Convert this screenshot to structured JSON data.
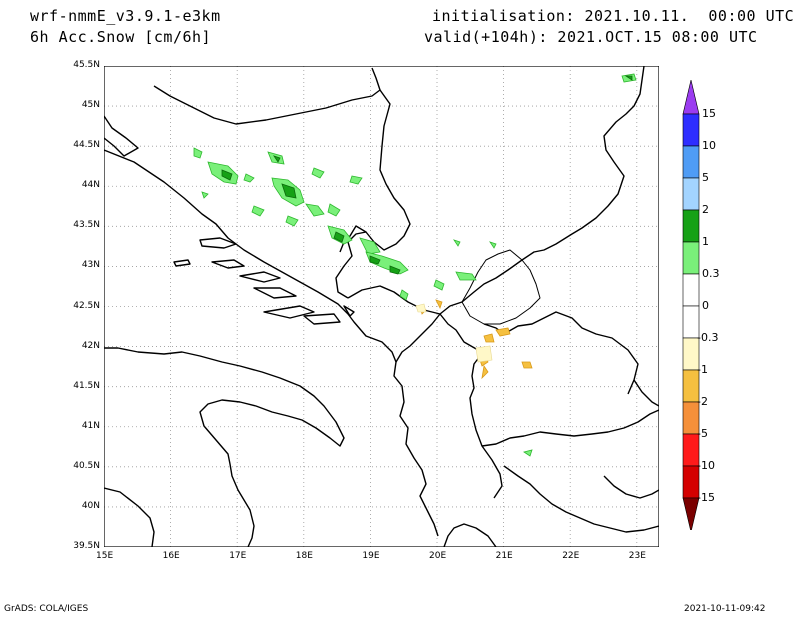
{
  "header": {
    "model": "wrf-nmmE_v3.9.1-e3km",
    "field": "6h Acc.Snow [cm/6h]",
    "init": "initialisation: 2021.10.11.  00:00 UTC",
    "valid": "valid(+104h): 2021.OCT.15 08:00 UTC"
  },
  "footer": {
    "credit": "GrADS: COLA/IGES",
    "timestamp": "2021-10-11-09:42"
  },
  "map": {
    "lat_labels": [
      "45.5N",
      "45N",
      "44.5N",
      "44N",
      "43.5N",
      "43N",
      "42.5N",
      "42N",
      "41.5N",
      "41N",
      "40.5N",
      "40N",
      "39.5N"
    ],
    "lon_labels": [
      "15E",
      "16E",
      "17E",
      "18E",
      "19E",
      "20E",
      "21E",
      "22E",
      "23E"
    ],
    "grid": "dotted"
  },
  "colorbar": {
    "labels": [
      "15",
      "10",
      "5",
      "2",
      "1",
      "0.3",
      "0",
      "-0.3",
      "-1",
      "-2",
      "-5",
      "-10",
      "-15"
    ],
    "colors": [
      "#2e2eff",
      "#4f9cf5",
      "#a3d4ff",
      "#16a116",
      "#7af07a",
      "#ffffff",
      "#ffffff",
      "#fff8c8",
      "#f5c040",
      "#f5903a",
      "#ff1a1a",
      "#d40000",
      "#990000"
    ],
    "top_arrow_color": "#9b3cf0",
    "bottom_arrow_color": "#7a0000"
  }
}
